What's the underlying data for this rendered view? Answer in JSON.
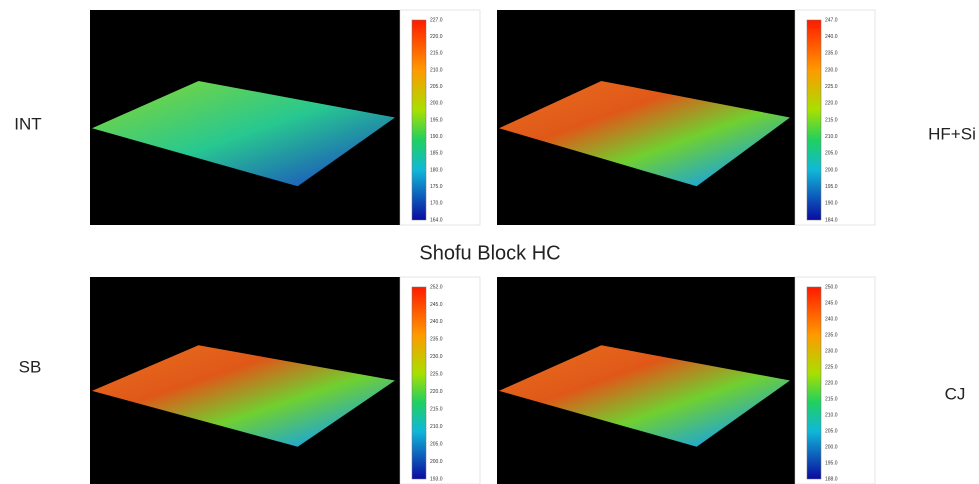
{
  "title": "Shofu Block HC",
  "panels": [
    {
      "label": "INT",
      "colorbar": [
        "227.0",
        "220.0",
        "215.0",
        "210.0",
        "205.0",
        "200.0",
        "195.0",
        "190.0",
        "185.0",
        "180.0",
        "175.0",
        "170.0",
        "164.0"
      ]
    },
    {
      "label": "HF+Si",
      "colorbar": [
        "247.0",
        "240.0",
        "235.0",
        "230.0",
        "225.0",
        "220.0",
        "215.0",
        "210.0",
        "205.0",
        "200.0",
        "195.0",
        "190.0",
        "184.0"
      ]
    },
    {
      "label": "SB",
      "colorbar": [
        "252.0",
        "245.0",
        "240.0",
        "235.0",
        "230.0",
        "225.0",
        "220.0",
        "215.0",
        "210.0",
        "205.0",
        "200.0",
        "193.0"
      ]
    },
    {
      "label": "CJ",
      "colorbar": [
        "250.0",
        "245.0",
        "240.0",
        "235.0",
        "230.0",
        "225.0",
        "220.0",
        "215.0",
        "210.0",
        "205.0",
        "200.0",
        "195.0",
        "188.0"
      ]
    }
  ]
}
